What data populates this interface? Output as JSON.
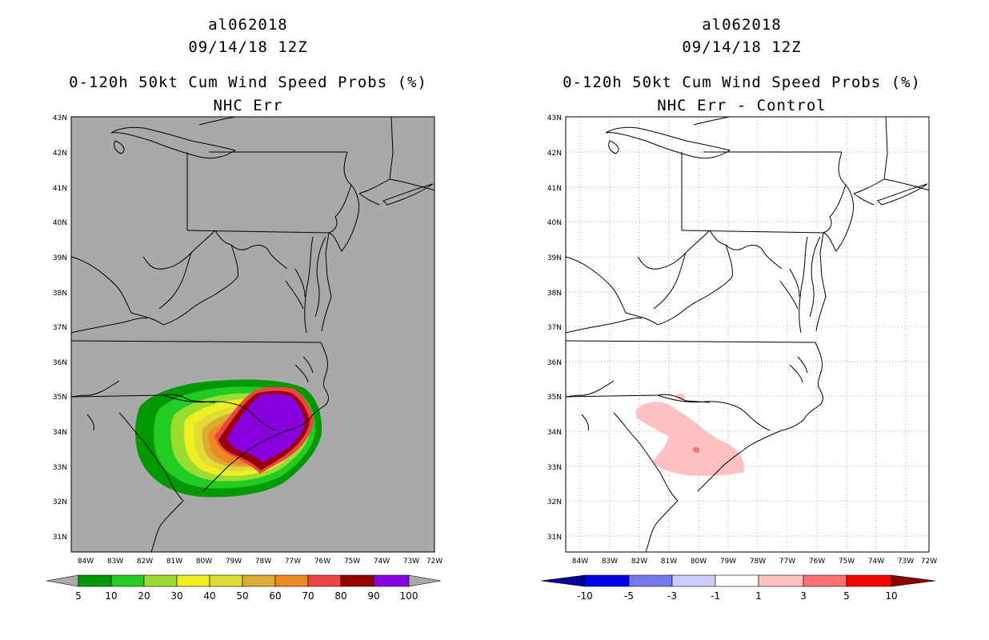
{
  "left_panel": {
    "storm_id": "al062018",
    "datetime": "09/14/18 12Z",
    "title": "0-120h 50kt Cum Wind Speed Probs (%)",
    "subtitle": "NHC Err",
    "background_color": "#a9a9a9",
    "colorbar": {
      "colors": [
        "#009900",
        "#22cc22",
        "#99dd33",
        "#eeee22",
        "#dddd33",
        "#ddaa33",
        "#ee8822",
        "#ee4444",
        "#990000",
        "#8800dd"
      ],
      "labels": [
        "5",
        "10",
        "20",
        "30",
        "40",
        "50",
        "60",
        "70",
        "80",
        "90",
        "100"
      ],
      "under_color": "#a9a9a9",
      "over_color": "#a9a9a9"
    }
  },
  "right_panel": {
    "storm_id": "al062018",
    "datetime": "09/14/18 12Z",
    "title": "0-120h 50kt Cum Wind Speed Probs (%)",
    "subtitle": "NHC Err - Control",
    "background_color": "#ffffff",
    "colorbar": {
      "colors": [
        "#0000ee",
        "#7777ee",
        "#ccccff",
        "#ffffff",
        "#ffc0c0",
        "#ff7070",
        "#ff0000"
      ],
      "labels": [
        "-10",
        "-5",
        "-3",
        "-1",
        "1",
        "3",
        "5",
        "10"
      ],
      "under_color": "#000099",
      "over_color": "#880000"
    }
  },
  "axes": {
    "lat_labels": [
      "43N",
      "42N",
      "41N",
      "40N",
      "39N",
      "38N",
      "37N",
      "36N",
      "35N",
      "34N",
      "33N",
      "32N",
      "31N"
    ],
    "lon_labels": [
      "84W",
      "83W",
      "82W",
      "81W",
      "80W",
      "79W",
      "78W",
      "77W",
      "76W",
      "75W",
      "74W",
      "73W",
      "72W"
    ]
  },
  "prob_field": {
    "levels": [
      5,
      10,
      20,
      30,
      40,
      50,
      60,
      70,
      80,
      90
    ],
    "center": [
      "78.2W",
      "34.0N"
    ]
  },
  "diff_field": {
    "levels": [
      1,
      3
    ],
    "region": "central South Carolina"
  }
}
